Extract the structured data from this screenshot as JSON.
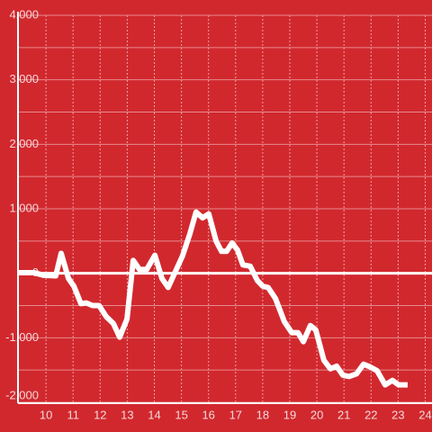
{
  "chart_data": {
    "type": "line",
    "x": [
      9.0,
      9.56,
      9.9,
      10.36,
      10.56,
      10.83,
      11.03,
      11.29,
      11.49,
      11.72,
      11.96,
      12.22,
      12.49,
      12.72,
      12.99,
      13.22,
      13.45,
      13.72,
      14.02,
      14.28,
      14.51,
      15.04,
      15.31,
      15.54,
      15.78,
      16.01,
      16.28,
      16.48,
      16.67,
      16.87,
      17.07,
      17.27,
      17.54,
      17.8,
      18.0,
      18.2,
      18.47,
      18.8,
      19.07,
      19.3,
      19.5,
      19.76,
      19.96,
      20.26,
      20.5,
      20.73,
      20.96,
      21.19,
      21.46,
      21.72,
      21.96,
      22.22,
      22.52,
      22.79,
      23.02,
      23.35
    ],
    "series": [
      {
        "color": "#ffffff",
        "values": [
          10,
          10,
          -30,
          -40,
          310,
          -80,
          -200,
          -470,
          -460,
          -500,
          -500,
          -670,
          -780,
          -990,
          -710,
          200,
          60,
          60,
          280,
          -80,
          -220,
          270,
          610,
          950,
          860,
          920,
          500,
          340,
          340,
          470,
          360,
          130,
          110,
          -110,
          -200,
          -220,
          -390,
          -750,
          -920,
          -920,
          -1060,
          -810,
          -880,
          -1350,
          -1480,
          -1440,
          -1580,
          -1600,
          -1560,
          -1410,
          -1450,
          -1510,
          -1730,
          -1660,
          -1730,
          -1730
        ]
      }
    ],
    "xlim": [
      9,
      24
    ],
    "xticks": [
      10,
      11,
      12,
      13,
      14,
      15,
      16,
      17,
      18,
      19,
      20,
      21,
      22,
      23,
      24
    ],
    "ylim": [
      -2000,
      4000
    ],
    "yticks": [
      {
        "value": -2000,
        "label": "-2,000"
      },
      {
        "value": -1000,
        "label": "-1,000"
      },
      0,
      {
        "value": 1000,
        "label": "1,000"
      },
      {
        "value": 2000,
        "label": "2,000"
      },
      {
        "value": 3000,
        "label": "3,000"
      },
      {
        "value": 4000,
        "label": "4,000"
      }
    ],
    "y_minor_grid": [
      -1500,
      -500,
      500,
      1500,
      2500,
      3500
    ],
    "grid": true
  }
}
